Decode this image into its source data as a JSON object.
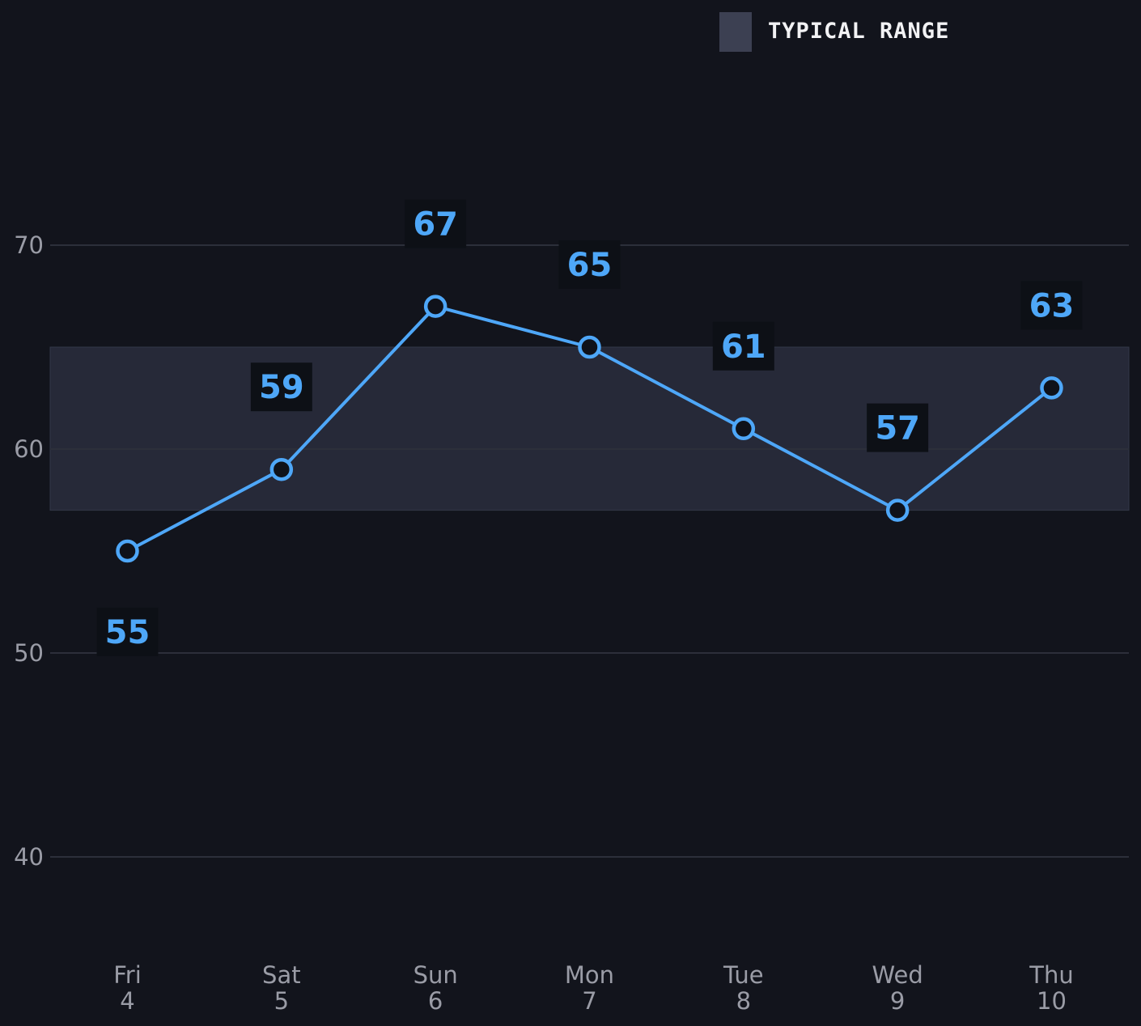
{
  "chart_data": {
    "type": "line",
    "categories": [
      {
        "day": "Fri",
        "date": "4"
      },
      {
        "day": "Sat",
        "date": "5"
      },
      {
        "day": "Sun",
        "date": "6"
      },
      {
        "day": "Mon",
        "date": "7"
      },
      {
        "day": "Tue",
        "date": "8"
      },
      {
        "day": "Wed",
        "date": "9"
      },
      {
        "day": "Thu",
        "date": "10"
      }
    ],
    "series": [
      {
        "values": [
          55,
          59,
          67,
          65,
          61,
          57,
          63
        ]
      }
    ],
    "data_labels": [
      "55",
      "59",
      "67",
      "65",
      "61",
      "57",
      "63"
    ],
    "typical_range": {
      "low": 57,
      "high": 65
    },
    "legend": [
      {
        "label": "TYPICAL RANGE",
        "swatch": "#3c4052"
      }
    ],
    "legend_position": "top-right",
    "ylim": [
      35,
      80
    ],
    "yticks": [
      40,
      50,
      60,
      70
    ],
    "grid": "horizontal",
    "title": "",
    "xlabel": "",
    "ylabel": "",
    "colors": {
      "background": "#12141c",
      "line": "#4ea7f8",
      "band": "#262938",
      "grid": "#2c2f3a",
      "tick_text": "#9a9ca6",
      "label_box": "#0d1016"
    }
  }
}
